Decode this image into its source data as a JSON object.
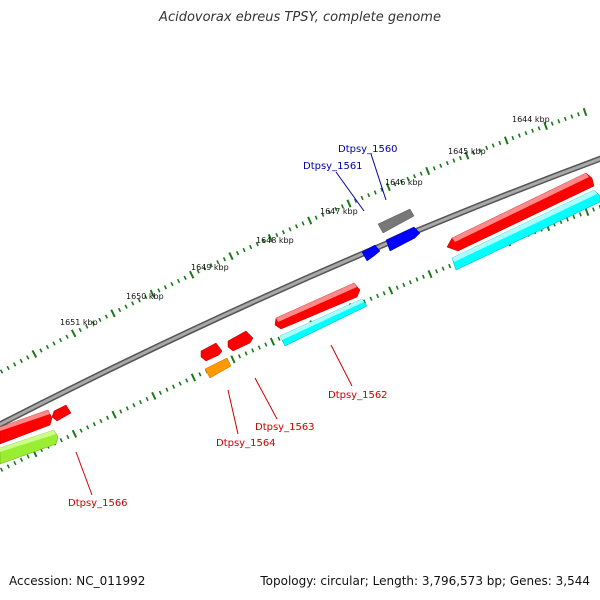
{
  "title": "Acidovorax ebreus TPSY, complete genome",
  "footer": {
    "accession": "Accession: NC_011992",
    "topology": "Topology: circular; Length: 3,796,573 bp; Genes: 3,544"
  },
  "ticks": [
    "1644 kbp",
    "1645 kbp",
    "1646 kbp",
    "1647 kbp",
    "1648 kbp",
    "1649 kbp",
    "1650 kbp",
    "1651 kbp"
  ],
  "genes": [
    {
      "label": "Dtpsy_1560",
      "color": "#0000aa"
    },
    {
      "label": "Dtpsy_1561",
      "color": "#0000aa"
    },
    {
      "label": "Dtpsy_1562",
      "color": "#cc0000"
    },
    {
      "label": "Dtpsy_1563",
      "color": "#cc0000"
    },
    {
      "label": "Dtpsy_1564",
      "color": "#cc0000"
    },
    {
      "label": "Dtpsy_1566",
      "color": "#cc0000"
    }
  ],
  "colors": {
    "backbone": "#808080",
    "tick": "#1a7a1a",
    "cds": "#ff0000",
    "cds_shade": "#aa0000",
    "gene_track": "#00ffff",
    "gene_track_shade": "#00aaaa",
    "blue_gene": "#0000ff",
    "grey_gene": "#777777",
    "orange_gene": "#ff9900",
    "green_gene": "#99ee33"
  }
}
